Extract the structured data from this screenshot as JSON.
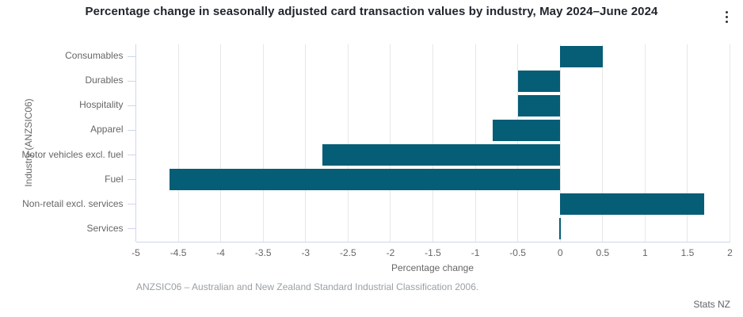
{
  "header": {
    "title": "Percentage change in seasonally adjusted card transaction values by industry, May 2024–June 2024"
  },
  "chart_data": {
    "type": "bar",
    "orientation": "horizontal",
    "categories": [
      "Consumables",
      "Durables",
      "Hospitality",
      "Apparel",
      "Motor vehicles excl. fuel",
      "Fuel",
      "Non-retail excl. services",
      "Services"
    ],
    "values": [
      0.5,
      -0.5,
      -0.5,
      -0.8,
      -2.8,
      -4.6,
      1.7,
      0.0
    ],
    "xlabel": "Percentage change",
    "ylabel": "Industry (ANZSIC06)",
    "xlim": [
      -5,
      2
    ],
    "xticks": [
      -5,
      -4.5,
      -4,
      -3.5,
      -3,
      -2.5,
      -2,
      -1.5,
      -1,
      -0.5,
      0,
      0.5,
      1,
      1.5,
      2
    ],
    "grid": true,
    "legend": "none",
    "bar_color": "#065d76",
    "gridline_color": "#e6e6e6",
    "axis_line_color": "#ccd6eb"
  },
  "footer": {
    "footnote": "ANZSIC06 – Australian and New Zealand Standard Industrial Classification 2006.",
    "attribution": "Stats NZ"
  }
}
